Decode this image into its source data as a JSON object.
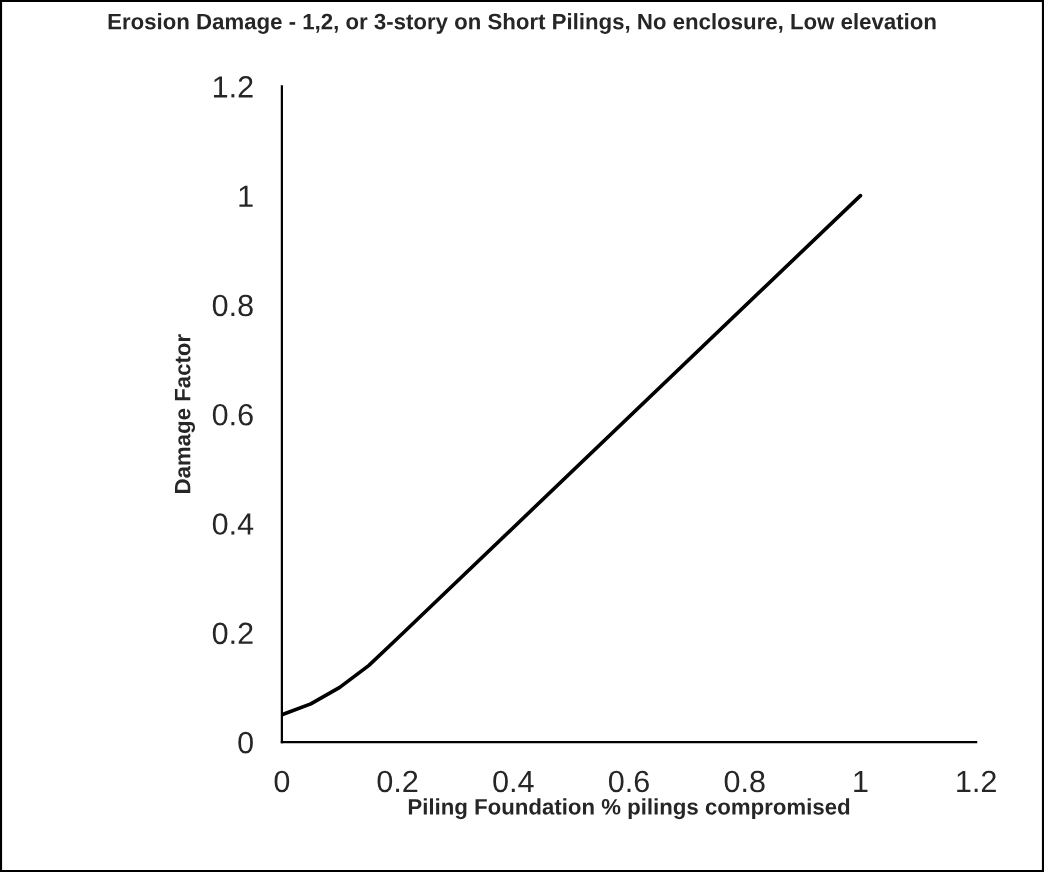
{
  "chart_data": {
    "type": "line",
    "title": "Erosion Damage - 1,2, or 3-story on Short Pilings, No enclosure, Low elevation",
    "xlabel": "Piling Foundation % pilings compromised",
    "ylabel": "Damage Factor",
    "x": [
      0,
      0.05,
      0.1,
      0.15,
      0.2,
      1
    ],
    "series": [
      {
        "color": "#000000",
        "values": [
          0.05,
          0.07,
          0.1,
          0.14,
          0.19,
          1
        ]
      }
    ],
    "xlim": [
      0,
      1.2
    ],
    "ylim": [
      0,
      1.2
    ],
    "xticks": [
      0,
      0.2,
      0.4,
      0.6,
      0.8,
      1,
      1.2
    ],
    "yticks": [
      0,
      0.2,
      0.4,
      0.6,
      0.8,
      1,
      1.2
    ],
    "grid": false,
    "legend": false,
    "marker": "none",
    "line_style": "solid"
  }
}
